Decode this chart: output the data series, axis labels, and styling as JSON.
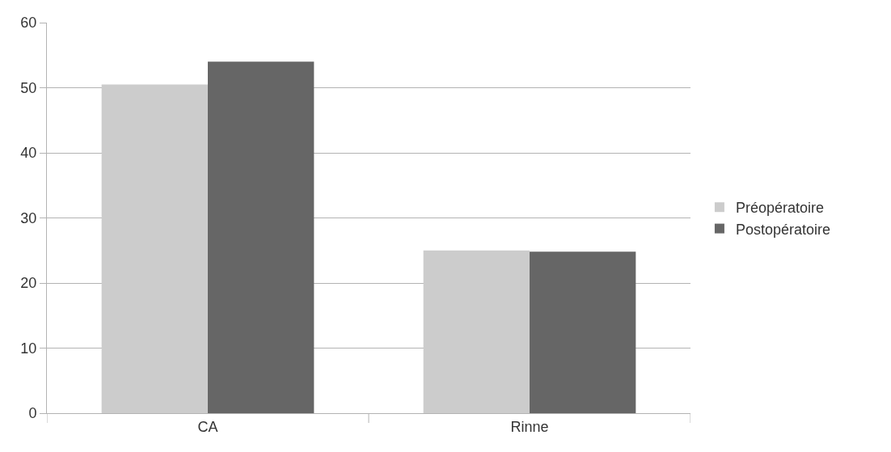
{
  "chart_data": {
    "type": "bar",
    "categories": [
      "CA",
      "Rinne"
    ],
    "series": [
      {
        "name": "Préopératoire",
        "color": "#cccccc",
        "values": [
          50.5,
          25
        ]
      },
      {
        "name": "Postopératoire",
        "color": "#666666",
        "values": [
          54,
          24.8
        ]
      }
    ],
    "ylim": [
      0,
      60
    ],
    "yticks": [
      0,
      10,
      20,
      30,
      40,
      50,
      60
    ],
    "grid": "y",
    "legend": "right"
  }
}
